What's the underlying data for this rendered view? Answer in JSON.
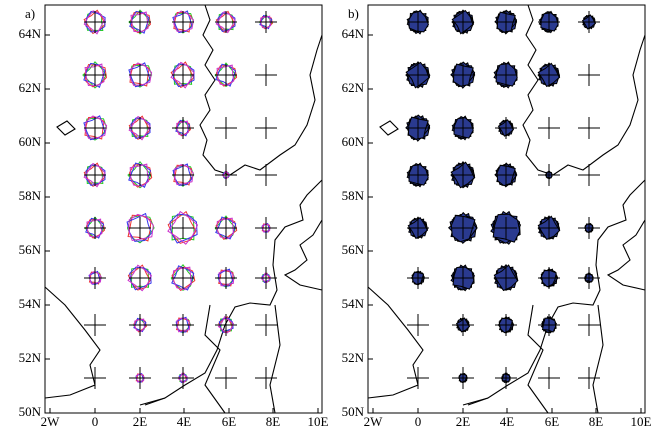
{
  "panels": [
    {
      "label": "a)"
    },
    {
      "label": "b)"
    }
  ],
  "axes": {
    "x_labels": [
      "2W",
      "0",
      "2E",
      "4E",
      "6E",
      "8E",
      "10E"
    ],
    "y_labels": [
      "50N",
      "52N",
      "54N",
      "56N",
      "58N",
      "60N",
      "62N",
      "64N"
    ]
  }
}
